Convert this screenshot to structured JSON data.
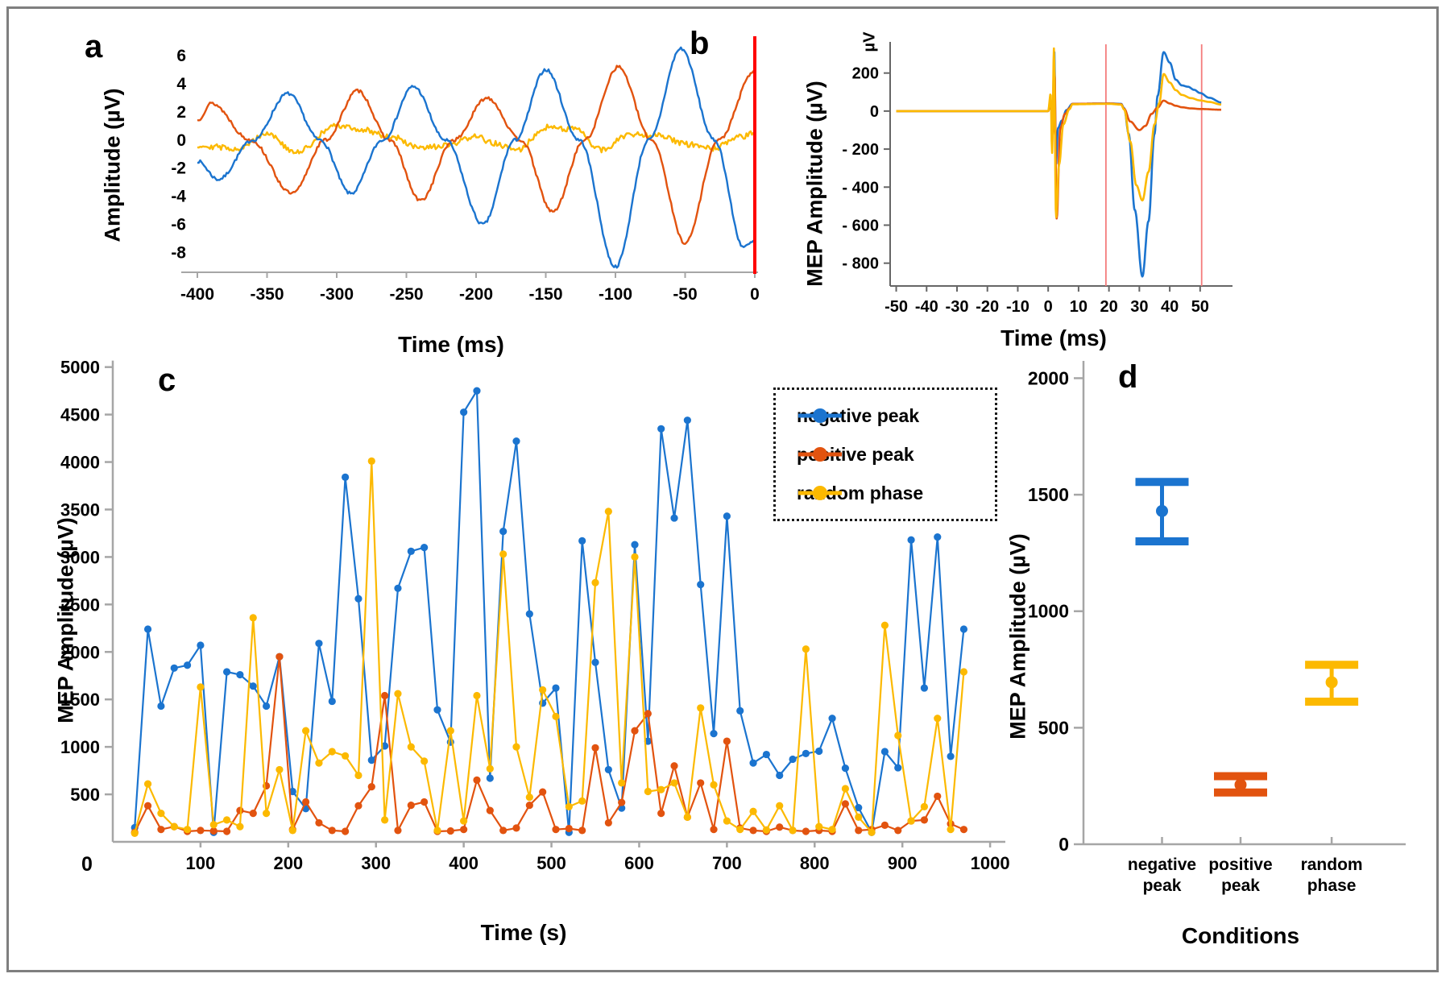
{
  "panel_letters": {
    "a": "a",
    "b": "b",
    "c": "c",
    "d": "d"
  },
  "colors": {
    "negative_peak_blue": "#1b74cf",
    "positive_peak_orange": "#e2530f",
    "random_phase_yellow": "#fcb900",
    "event_line_red": "#ff0000",
    "window_line_red": "#f47c7c",
    "axis_gray": "#a6a6a6",
    "axis_dark": "#666666",
    "frame_gray": "#7f7f7f"
  },
  "chart_data": [
    {
      "panel": "a",
      "type": "line",
      "xlabel": "Time (ms)",
      "ylabel": "Amplitude (µV)",
      "x_range": [
        -411,
        1
      ],
      "y_range": [
        -9.4,
        6.8
      ],
      "x_ticks": [
        -400,
        -350,
        -300,
        -250,
        -200,
        -150,
        -100,
        -50,
        0
      ],
      "y_ticks": [
        6,
        4,
        2,
        0,
        -2,
        -4,
        -6,
        -8
      ],
      "event_line_x": 0,
      "grid": false,
      "series": [
        {
          "name": "random phase",
          "color_key": "random_phase_yellow",
          "noise": 0.2,
          "seed": 29,
          "anchors": [
            [
              -400,
              -0.4
            ],
            [
              -370,
              -0.6
            ],
            [
              -350,
              0.5
            ],
            [
              -330,
              -0.9
            ],
            [
              -300,
              1.0
            ],
            [
              -280,
              0.7
            ],
            [
              -260,
              0.2
            ],
            [
              -240,
              -0.6
            ],
            [
              -220,
              -0.4
            ],
            [
              -200,
              0.3
            ],
            [
              -190,
              -0.2
            ],
            [
              -170,
              -0.7
            ],
            [
              -150,
              0.9
            ],
            [
              -130,
              0.8
            ],
            [
              -110,
              -0.7
            ],
            [
              -90,
              0.4
            ],
            [
              -70,
              0.4
            ],
            [
              -50,
              -0.3
            ],
            [
              -30,
              -0.6
            ],
            [
              -10,
              0.2
            ],
            [
              0,
              0.5
            ]
          ]
        },
        {
          "name": "positive peak",
          "color_key": "positive_peak_orange",
          "noise": 0.12,
          "seed": 13,
          "anchors": [
            [
              -400,
              1.4
            ],
            [
              -390,
              2.6
            ],
            [
              -362,
              0
            ],
            [
              -332,
              -3.8
            ],
            [
              -308,
              0
            ],
            [
              -285,
              3.5
            ],
            [
              -262,
              0
            ],
            [
              -240,
              -4.3
            ],
            [
              -216,
              0
            ],
            [
              -192,
              3.0
            ],
            [
              -168,
              0
            ],
            [
              -145,
              -5.1
            ],
            [
              -122,
              0
            ],
            [
              -98,
              5.2
            ],
            [
              -74,
              0
            ],
            [
              -50,
              -7.3
            ],
            [
              -26,
              0
            ],
            [
              0,
              4.9
            ]
          ]
        },
        {
          "name": "negative peak",
          "color_key": "negative_peak_blue",
          "noise": 0.12,
          "seed": 7,
          "anchors": [
            [
              -400,
              -1.5
            ],
            [
              -385,
              -2.8
            ],
            [
              -360,
              0
            ],
            [
              -335,
              3.3
            ],
            [
              -312,
              0
            ],
            [
              -290,
              -3.8
            ],
            [
              -267,
              0
            ],
            [
              -245,
              3.8
            ],
            [
              -222,
              0
            ],
            [
              -195,
              -6.0
            ],
            [
              -172,
              0
            ],
            [
              -150,
              5.0
            ],
            [
              -126,
              0
            ],
            [
              -100,
              -9.0
            ],
            [
              -76,
              0
            ],
            [
              -53,
              6.5
            ],
            [
              -29,
              0
            ],
            [
              -8,
              -7.6
            ],
            [
              0,
              -7.2
            ]
          ]
        }
      ]
    },
    {
      "panel": "b",
      "type": "line",
      "xlabel": "Time (ms)",
      "ylabel": "MEP Amplitude (µV)",
      "unit_label": "µV",
      "x_range": [
        -52,
        58
      ],
      "y_range": [
        -920,
        330
      ],
      "x_ticks": [
        -50,
        -40,
        -30,
        -20,
        -10,
        0,
        10,
        20,
        30,
        40,
        50
      ],
      "y_ticks": [
        {
          "v": 200,
          "t": "200"
        },
        {
          "v": 0,
          "t": "0"
        },
        {
          "v": -200,
          "t": "- 200"
        },
        {
          "v": -400,
          "t": "- 400"
        },
        {
          "v": -600,
          "t": "- 600"
        },
        {
          "v": -800,
          "t": "- 800"
        }
      ],
      "window_lines_x": [
        19,
        50.5
      ],
      "grid": false,
      "series": [
        {
          "name": "negative peak",
          "color_key": "negative_peak_blue",
          "noise": 0,
          "seed": 1,
          "anchors": [
            [
              -50,
              0
            ],
            [
              0,
              0
            ],
            [
              0.8,
              60
            ],
            [
              1.4,
              -80
            ],
            [
              2,
              320
            ],
            [
              2.6,
              -280
            ],
            [
              3.2,
              -90
            ],
            [
              4.5,
              -50
            ],
            [
              6,
              5
            ],
            [
              8,
              38
            ],
            [
              20,
              40
            ],
            [
              24,
              38
            ],
            [
              25,
              15
            ],
            [
              26.5,
              -120
            ],
            [
              28.5,
              -520
            ],
            [
              31,
              -870
            ],
            [
              33,
              -580
            ],
            [
              35,
              -120
            ],
            [
              36,
              80
            ],
            [
              38,
              310
            ],
            [
              40,
              255
            ],
            [
              42,
              165
            ],
            [
              44,
              135
            ],
            [
              46,
              128
            ],
            [
              48,
              112
            ],
            [
              50,
              95
            ],
            [
              53,
              70
            ],
            [
              57,
              45
            ]
          ]
        },
        {
          "name": "positive peak",
          "color_key": "positive_peak_orange",
          "noise": 0,
          "seed": 2,
          "anchors": [
            [
              -50,
              0
            ],
            [
              0,
              0
            ],
            [
              0.9,
              50
            ],
            [
              1.5,
              -130
            ],
            [
              2.1,
              210
            ],
            [
              2.8,
              -565
            ],
            [
              4,
              -90
            ],
            [
              5.5,
              -15
            ],
            [
              7,
              15
            ],
            [
              8,
              38
            ],
            [
              20,
              40
            ],
            [
              24,
              36
            ],
            [
              25,
              12
            ],
            [
              27,
              -55
            ],
            [
              30,
              -100
            ],
            [
              32,
              -78
            ],
            [
              34,
              -15
            ],
            [
              36,
              18
            ],
            [
              38,
              55
            ],
            [
              40,
              40
            ],
            [
              42,
              28
            ],
            [
              44,
              20
            ],
            [
              47,
              14
            ],
            [
              50,
              11
            ],
            [
              57,
              7
            ]
          ]
        },
        {
          "name": "random phase",
          "color_key": "random_phase_yellow",
          "noise": 0,
          "seed": 3,
          "anchors": [
            [
              -50,
              0
            ],
            [
              0,
              0
            ],
            [
              0.8,
              90
            ],
            [
              1.3,
              -220
            ],
            [
              1.9,
              330
            ],
            [
              2.6,
              -560
            ],
            [
              3.6,
              -280
            ],
            [
              5,
              -70
            ],
            [
              7,
              10
            ],
            [
              8,
              36
            ],
            [
              20,
              38
            ],
            [
              24,
              34
            ],
            [
              25,
              8
            ],
            [
              27,
              -160
            ],
            [
              29,
              -390
            ],
            [
              31,
              -470
            ],
            [
              33,
              -320
            ],
            [
              35,
              -70
            ],
            [
              36.5,
              40
            ],
            [
              38,
              195
            ],
            [
              40,
              150
            ],
            [
              42,
              110
            ],
            [
              44,
              85
            ],
            [
              47,
              68
            ],
            [
              50,
              56
            ],
            [
              53,
              48
            ],
            [
              57,
              34
            ]
          ]
        }
      ]
    },
    {
      "panel": "c",
      "type": "scatter-line",
      "xlabel": "Time (s)",
      "ylabel": "MEP Amplitude (µV)",
      "x_range": [
        0,
        1010
      ],
      "y_range": [
        0,
        5150
      ],
      "x_ticks": [
        100,
        200,
        300,
        400,
        500,
        600,
        700,
        800,
        900,
        1000
      ],
      "corner_zero": "0",
      "y_ticks": [
        500,
        1000,
        1500,
        2000,
        2500,
        3000,
        3500,
        4000,
        4500,
        5000
      ],
      "legend_position": "top-right",
      "grid": false,
      "times": [
        25,
        40,
        55,
        70,
        85,
        100,
        115,
        130,
        145,
        160,
        175,
        190,
        205,
        220,
        235,
        250,
        265,
        280,
        295,
        310,
        325,
        340,
        355,
        370,
        385,
        400,
        415,
        430,
        445,
        460,
        475,
        490,
        505,
        520,
        535,
        550,
        565,
        580,
        595,
        610,
        625,
        640,
        655,
        670,
        685,
        700,
        715,
        730,
        745,
        760,
        775,
        790,
        805,
        820,
        835,
        850,
        865,
        880,
        895,
        910,
        925,
        940,
        955,
        970
      ],
      "series": [
        {
          "name": "negative peak",
          "color_key": "negative_peak_blue",
          "values": [
            150,
            2240,
            1430,
            1830,
            1860,
            2070,
            100,
            1790,
            1760,
            1640,
            1430,
            1950,
            530,
            350,
            2090,
            1480,
            3840,
            2560,
            860,
            1010,
            2670,
            3060,
            3100,
            1390,
            1050,
            4525,
            4750,
            670,
            3270,
            4220,
            2400,
            1460,
            1620,
            100,
            3170,
            1890,
            760,
            355,
            3130,
            1060,
            4350,
            3410,
            4440,
            2710,
            1140,
            3430,
            1380,
            830,
            920,
            700,
            870,
            930,
            955,
            1300,
            775,
            360,
            100,
            950,
            780,
            3180,
            1620,
            3210,
            900,
            2240
          ]
        },
        {
          "name": "positive peak",
          "color_key": "positive_peak_orange",
          "values": [
            100,
            380,
            130,
            160,
            110,
            120,
            115,
            110,
            330,
            300,
            590,
            1950,
            130,
            420,
            200,
            120,
            110,
            380,
            580,
            1540,
            120,
            385,
            420,
            110,
            115,
            130,
            650,
            330,
            120,
            145,
            385,
            525,
            130,
            140,
            120,
            990,
            200,
            415,
            1170,
            1350,
            300,
            800,
            260,
            620,
            130,
            1060,
            145,
            120,
            110,
            155,
            120,
            110,
            120,
            110,
            400,
            120,
            130,
            175,
            120,
            220,
            230,
            480,
            190,
            130
          ]
        },
        {
          "name": "random phase",
          "color_key": "random_phase_yellow",
          "values": [
            90,
            610,
            300,
            160,
            130,
            1630,
            180,
            230,
            160,
            2360,
            300,
            760,
            120,
            1170,
            830,
            950,
            905,
            700,
            4010,
            230,
            1560,
            1000,
            850,
            120,
            1170,
            220,
            1540,
            770,
            3030,
            1000,
            470,
            1600,
            1320,
            370,
            430,
            2730,
            3480,
            620,
            3000,
            530,
            550,
            620,
            260,
            1410,
            600,
            220,
            130,
            320,
            125,
            380,
            120,
            2030,
            160,
            130,
            560,
            260,
            100,
            2280,
            1120,
            220,
            370,
            1300,
            130,
            1790
          ]
        }
      ]
    },
    {
      "panel": "d",
      "type": "errorbar",
      "xlabel": "Conditions",
      "ylabel": "MEP Amplitude (µV)",
      "y_range": [
        0,
        2050
      ],
      "y_ticks": [
        0,
        500,
        1000,
        1500,
        2000
      ],
      "categories": [
        "negative peak",
        "positive peak",
        "random phase"
      ],
      "category_lines": [
        [
          "negative",
          "peak"
        ],
        [
          "positive",
          "peak"
        ],
        [
          "random",
          "phase"
        ]
      ],
      "color_keys": [
        "negative_peak_blue",
        "positive_peak_orange",
        "random_phase_yellow"
      ],
      "means": [
        1430,
        255,
        695
      ],
      "upper": [
        1555,
        292,
        770
      ],
      "lower": [
        1300,
        222,
        612
      ],
      "grid": false
    }
  ]
}
